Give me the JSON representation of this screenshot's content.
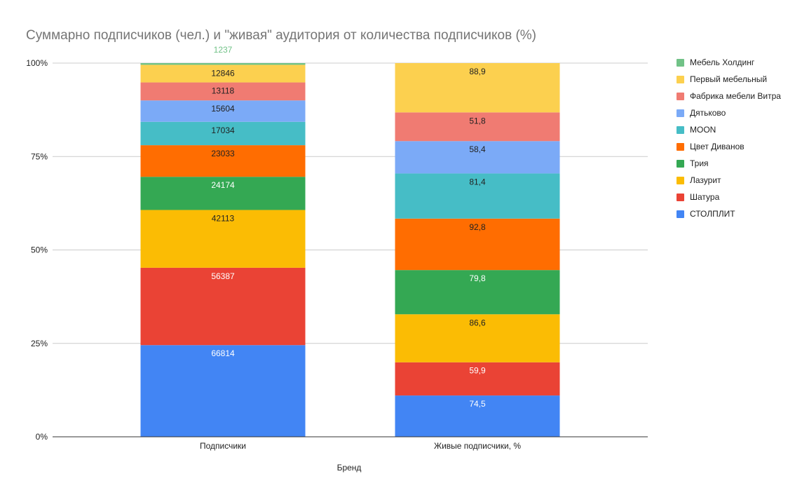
{
  "chart_data": {
    "type": "bar",
    "stacking": "percent",
    "title": "Суммарно подписчиков (чел.) и  \"живая\" аудитория от количества подписчиков (%)",
    "xlabel": "Бренд",
    "ylabel": "",
    "ylim": [
      0,
      100
    ],
    "y_ticks": [
      "0%",
      "25%",
      "50%",
      "75%",
      "100%"
    ],
    "grid": true,
    "legend_position": "right",
    "categories": [
      "Подписчики",
      "Живые подписчики, %"
    ],
    "series": [
      {
        "name": "СТОЛПЛИТ",
        "color": "#4285f4",
        "values": [
          66814,
          74.5
        ],
        "labels": [
          "66814",
          "74,5"
        ],
        "label_color": "#ffffff"
      },
      {
        "name": "Шатура",
        "color": "#ea4335",
        "values": [
          56387,
          59.9
        ],
        "labels": [
          "56387",
          "59,9"
        ],
        "label_color": "#ffffff"
      },
      {
        "name": "Лазурит",
        "color": "#fbbc04",
        "values": [
          42113,
          86.6
        ],
        "labels": [
          "42113",
          "86,6"
        ],
        "label_color": "#222222"
      },
      {
        "name": "Трия",
        "color": "#34a853",
        "values": [
          24174,
          79.8
        ],
        "labels": [
          "24174",
          "79,8"
        ],
        "label_color": "#ffffff"
      },
      {
        "name": "Цвет Диванов",
        "color": "#ff6d01",
        "values": [
          23033,
          92.8
        ],
        "labels": [
          "23033",
          "92,8"
        ],
        "label_color": "#222222"
      },
      {
        "name": "MOON",
        "color": "#46bdc6",
        "values": [
          17034,
          81.4
        ],
        "labels": [
          "17034",
          "81,4"
        ],
        "label_color": "#222222"
      },
      {
        "name": "Дятьково",
        "color": "#7baaf7",
        "values": [
          15604,
          58.4
        ],
        "labels": [
          "15604",
          "58,4"
        ],
        "label_color": "#222222"
      },
      {
        "name": "Фабрика мебели Витра",
        "color": "#f07b72",
        "values": [
          13118,
          51.8
        ],
        "labels": [
          "13118",
          "51,8"
        ],
        "label_color": "#222222"
      },
      {
        "name": "Первый мебельный",
        "color": "#fcd04f",
        "values": [
          12846,
          88.9
        ],
        "labels": [
          "12846",
          "88,9"
        ],
        "label_color": "#222222"
      },
      {
        "name": "Мебель Холдинг",
        "color": "#71c287",
        "values": [
          1237,
          0
        ],
        "labels": [
          "1237",
          ""
        ],
        "label_color": "#71c287",
        "label_outside": true
      }
    ],
    "legend_order": [
      "Мебель Холдинг",
      "Первый мебельный",
      "Фабрика мебели Витра",
      "Дятьково",
      "MOON",
      "Цвет Диванов",
      "Трия",
      "Лазурит",
      "Шатура",
      "СТОЛПЛИТ"
    ]
  }
}
